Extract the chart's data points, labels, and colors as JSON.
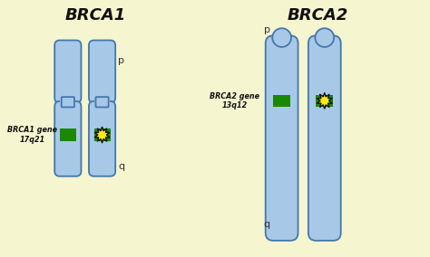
{
  "bg_color": "#f5f5d0",
  "title_brca1": "BRCA1",
  "title_brca2": "BRCA2",
  "chrom_color": "#a8c8e8",
  "chrom_edge": "#4477aa",
  "gene_color": "#1a8800",
  "label_brca1": "BRCA1 gene\n17q21",
  "label_brca2": "BRCA2 gene\n13q12",
  "p_label": "p",
  "q_label": "q",
  "star_color": "#ffee00",
  "star_edge": "#111111",
  "star_bg": "#000000"
}
